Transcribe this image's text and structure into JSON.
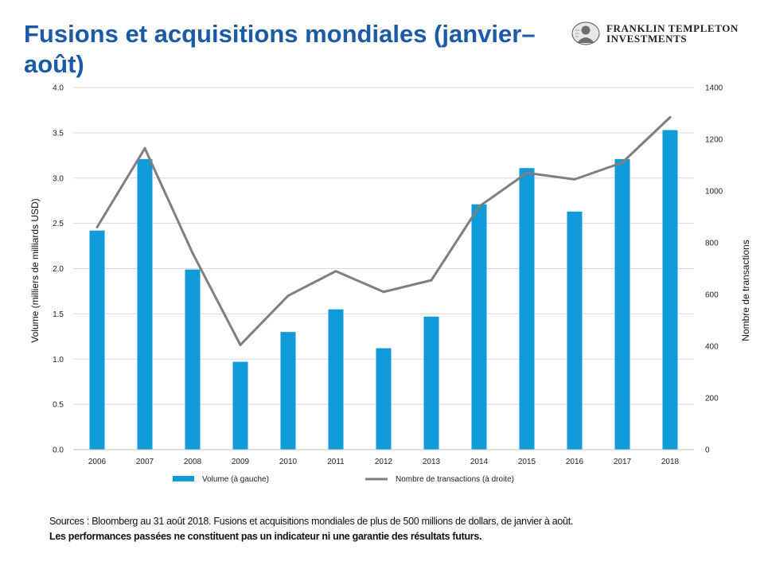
{
  "title": "Fusions et acquisitions mondiales (janvier–août)",
  "brand": {
    "line1": "FRANKLIN TEMPLETON",
    "line2": "INVESTMENTS"
  },
  "footnote": {
    "source": "Sources : Bloomberg au 31 août 2018. Fusions et acquisitions mondiales de plus de 500 millions de dollars, de janvier à août.",
    "disclaimer": "Les performances passées ne constituent pas un indicateur ni une garantie des résultats futurs."
  },
  "colors": {
    "title": "#1a5aa6",
    "bars": "#0f9bd7",
    "line": "#7f7f7f",
    "grid": "#d9d9d9"
  },
  "chart_data": {
    "type": "bar",
    "categories": [
      "2006",
      "2007",
      "2008",
      "2009",
      "2010",
      "2011",
      "2012",
      "2013",
      "2014",
      "2015",
      "2016",
      "2017",
      "2018"
    ],
    "series": [
      {
        "name": "Volume (à gauche)",
        "type": "bar",
        "axis": "left",
        "values": [
          2.42,
          3.21,
          1.99,
          0.97,
          1.3,
          1.55,
          1.12,
          1.47,
          2.71,
          3.11,
          2.63,
          3.21,
          3.53
        ]
      },
      {
        "name": "Nombre de transactions  (à droite)",
        "type": "line",
        "axis": "right",
        "values": [
          860,
          1165,
          760,
          405,
          595,
          690,
          610,
          655,
          940,
          1070,
          1045,
          1110,
          1285
        ]
      }
    ],
    "ylabel": "Volume (milliers de milliards USD)",
    "ylabel_right": "Nombre de transactions",
    "ylim": [
      0,
      4
    ],
    "ylim_right": [
      0,
      1400
    ],
    "yticks": [
      "0.0",
      "0.5",
      "1.0",
      "1.5",
      "2.0",
      "2.5",
      "3.0",
      "3.5",
      "4.0"
    ],
    "yticks_right": [
      "0",
      "200",
      "400",
      "600",
      "800",
      "1000",
      "1200",
      "1400"
    ],
    "grid": true,
    "legend": "bottom"
  }
}
